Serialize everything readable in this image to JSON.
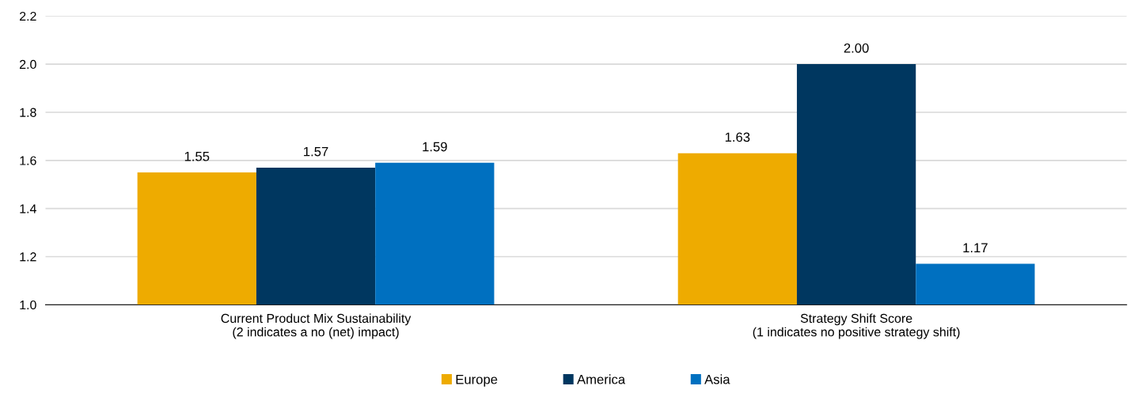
{
  "chart_data": {
    "type": "bar",
    "categories": [
      "Current Product Mix Sustainability\n(2 indicates a no (net) impact)",
      "Strategy Shift Score\n(1 indicates no positive strategy shift)"
    ],
    "series": [
      {
        "name": "Europe",
        "color": "#eeab00",
        "values": [
          1.55,
          1.63
        ],
        "value_labels": [
          "1.55",
          "1.63"
        ]
      },
      {
        "name": "America",
        "color": "#003760",
        "values": [
          1.57,
          2.0
        ],
        "value_labels": [
          "1.57",
          "2.00"
        ]
      },
      {
        "name": "Asia",
        "color": "#0070c0",
        "values": [
          1.59,
          1.17
        ],
        "value_labels": [
          "1.59",
          "1.17"
        ]
      }
    ],
    "ylim": [
      1.0,
      2.2
    ],
    "yticks": [
      {
        "value": 1.0,
        "label": "1.0"
      },
      {
        "value": 1.2,
        "label": "1.2"
      },
      {
        "value": 1.4,
        "label": "1.4"
      },
      {
        "value": 1.6,
        "label": "1.6"
      },
      {
        "value": 1.8,
        "label": "1.8"
      },
      {
        "value": 2.0,
        "label": "2.0"
      },
      {
        "value": 2.2,
        "label": "2.2"
      }
    ],
    "grid": "y",
    "legend": "bottom"
  }
}
